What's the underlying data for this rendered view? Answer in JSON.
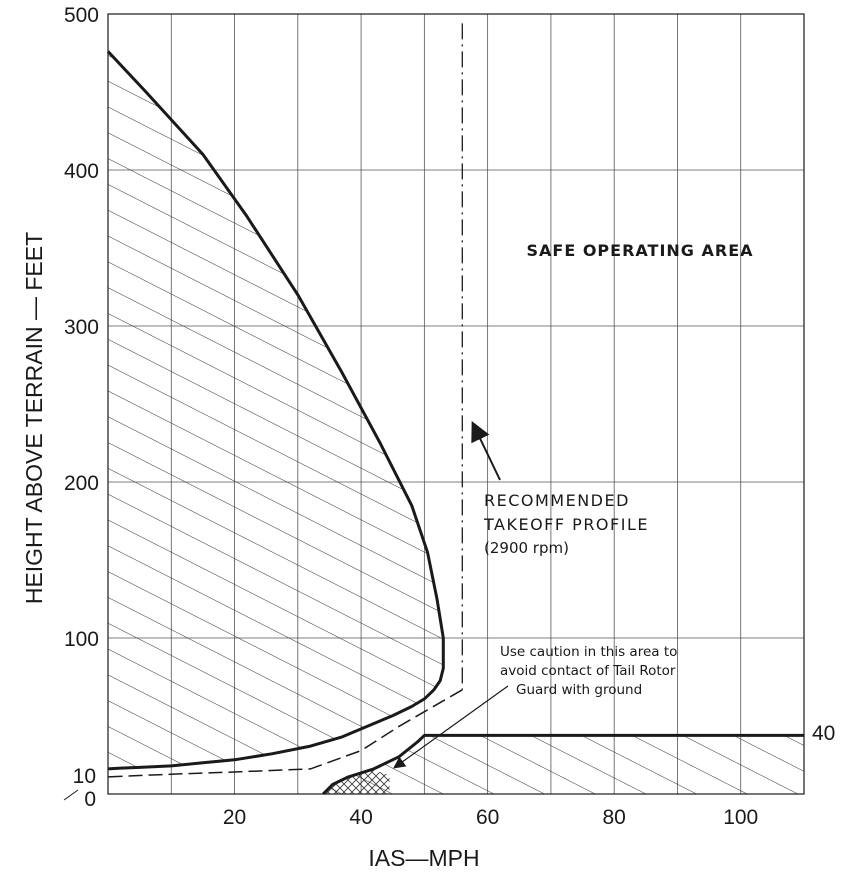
{
  "chart_data": {
    "type": "line",
    "title": "",
    "xlabel": "IAS—MPH",
    "ylabel": "HEIGHT ABOVE TERRAIN — FEET",
    "xlim": [
      0,
      110
    ],
    "ylim": [
      0,
      500
    ],
    "grid": true,
    "x_ticks": [
      "20",
      "40",
      "60",
      "80",
      "100"
    ],
    "x_tick_values": [
      20,
      40,
      60,
      80,
      100
    ],
    "y_ticks": [
      "0",
      "10",
      "100",
      "200",
      "300",
      "400",
      "500"
    ],
    "y_tick_values": [
      0,
      10,
      100,
      200,
      300,
      400,
      500
    ],
    "series": [
      {
        "style": "solid-thick",
        "x": [
          0,
          6,
          15,
          22,
          30,
          37,
          43,
          48,
          50.5,
          52,
          53,
          53,
          52.5,
          51.5,
          50,
          48,
          45,
          41,
          37,
          32,
          26,
          20,
          15,
          10,
          5,
          2,
          0
        ],
        "y": [
          476,
          450,
          410,
          370,
          320,
          270,
          225,
          185,
          155,
          125,
          100,
          80,
          72,
          66,
          60,
          55,
          49,
          42,
          35,
          29,
          24,
          20,
          18,
          16,
          15,
          14.5,
          14
        ]
      },
      {
        "style": "solid-thick",
        "x": [
          34,
          35.5,
          38,
          42,
          46,
          49,
          50,
          110
        ],
        "y": [
          0,
          5,
          9,
          14,
          22,
          32,
          36,
          36
        ]
      },
      {
        "style": "dash-dot",
        "x": [
          56,
          56
        ],
        "y": [
          494,
          66
        ]
      },
      {
        "style": "dashed",
        "x": [
          56,
          46,
          40,
          32,
          20,
          10,
          0
        ],
        "y": [
          66,
          42,
          26,
          14,
          12,
          10.5,
          9
        ]
      }
    ],
    "regions": [
      {
        "name": "avoid-upper",
        "hatch": "diagonal"
      },
      {
        "name": "avoid-lower",
        "hatch": "diagonal"
      },
      {
        "name": "caution",
        "hatch": "crosshatch"
      }
    ],
    "annotations": {
      "safe": "SAFE OPERATING AREA",
      "takeoff_1": "RECOMMENDED",
      "takeoff_2": "TAKEOFF PROFILE",
      "takeoff_3": "(2900 rpm)",
      "caution_1": "Use caution in this area to",
      "caution_2": "avoid contact of Tail Rotor",
      "caution_3": "Guard with ground",
      "right_label": "40"
    }
  }
}
